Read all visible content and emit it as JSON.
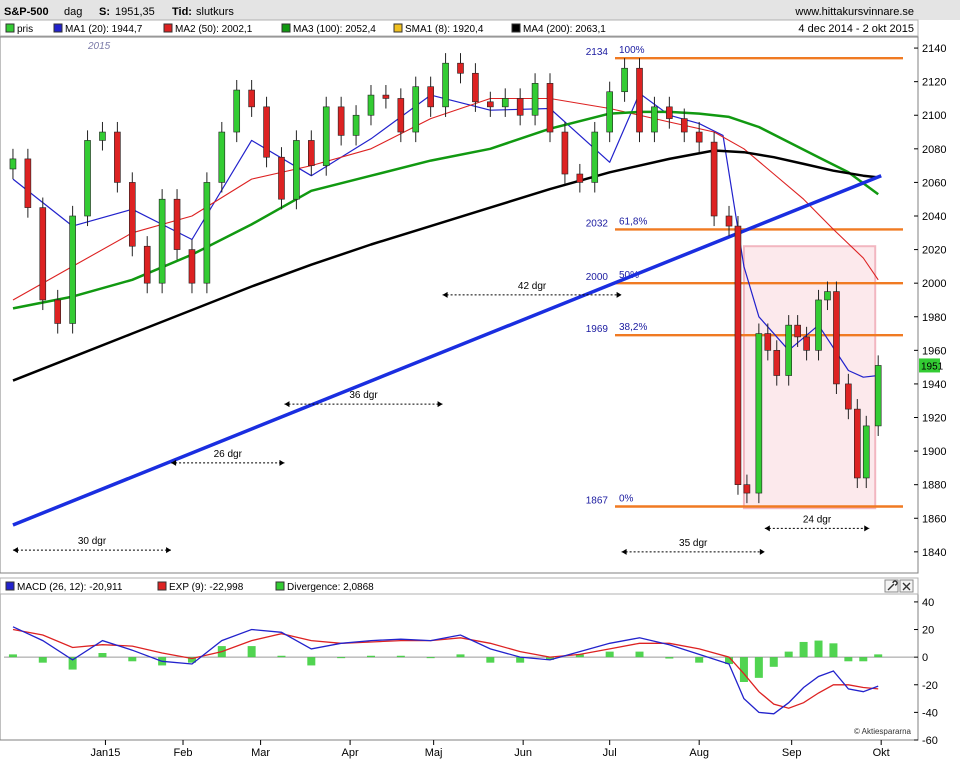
{
  "header": {
    "symbol": "S&P-500",
    "period": "dag",
    "last_label": "S:",
    "last_value": "1951,35",
    "type_label": "Tid:",
    "type_value": "slutkurs",
    "site": "www.hittakursvinnare.se",
    "date_range": "4 dec 2014 - 2 okt 2015",
    "year_watermark": "2015"
  },
  "legend": [
    {
      "label": "pris",
      "color": "#33cc33"
    },
    {
      "label": "MA1 (20): 1944,7",
      "color": "#2222cc"
    },
    {
      "label": "MA2 (50): 2002,1",
      "color": "#dd2222"
    },
    {
      "label": "MA3 (100): 2052,4",
      "color": "#119911"
    },
    {
      "label": "SMA1 (8): 1920,4",
      "color": "#f0c020"
    },
    {
      "label": "MA4 (200): 2063,1",
      "color": "#000000"
    }
  ],
  "macd_legend": [
    {
      "label": "MACD (26, 12): -20,911",
      "color": "#2222cc"
    },
    {
      "label": "EXP (9): -22,998",
      "color": "#dd2222"
    },
    {
      "label": "Divergence: 2,0868",
      "color": "#33cc33"
    }
  ],
  "price_tag": "1951",
  "credit": "© Aktiespararna",
  "fib_levels": [
    {
      "price": 2134,
      "label": "2134",
      "pct": "100%"
    },
    {
      "price": 2032,
      "label": "2032",
      "pct": "61,8%"
    },
    {
      "price": 2000,
      "label": "2000",
      "pct": "50%"
    },
    {
      "price": 1969,
      "label": "1969",
      "pct": "38,2%"
    },
    {
      "price": 1867,
      "label": "1867",
      "pct": "0%"
    }
  ],
  "distance_labels": [
    {
      "text": "30 dgr",
      "x0": 0.0,
      "x1": 5.3,
      "price": 1841
    },
    {
      "text": "26 dgr",
      "x0": 5.3,
      "x1": 9.1,
      "price": 1893
    },
    {
      "text": "36 dgr",
      "x0": 9.1,
      "x1": 14.4,
      "price": 1928
    },
    {
      "text": "42 dgr",
      "x0": 14.4,
      "x1": 20.4,
      "price": 1993
    },
    {
      "text": "35 dgr",
      "x0": 20.4,
      "x1": 25.2,
      "price": 1840
    },
    {
      "text": "24 dgr",
      "x0": 25.2,
      "x1": 28.7,
      "price": 1854
    }
  ],
  "chart_data": {
    "type": "line",
    "title": "S&P-500",
    "x_unit": "weeks since 4 dec 2014",
    "xlim": [
      -0.3,
      30.2
    ],
    "ylim": [
      1828,
      2146
    ],
    "y_ticks": [
      1840,
      1860,
      1880,
      1900,
      1920,
      1940,
      1960,
      1980,
      2000,
      2020,
      2040,
      2060,
      2080,
      2100,
      2120,
      2140
    ],
    "months": [
      {
        "label": "Jan15",
        "x": 3.1
      },
      {
        "label": "Feb",
        "x": 5.7
      },
      {
        "label": "Mar",
        "x": 8.3
      },
      {
        "label": "Apr",
        "x": 11.3
      },
      {
        "label": "Maj",
        "x": 14.1
      },
      {
        "label": "Jun",
        "x": 17.1
      },
      {
        "label": "Jul",
        "x": 20.0
      },
      {
        "label": "Aug",
        "x": 23.0
      },
      {
        "label": "Sep",
        "x": 26.1
      },
      {
        "label": "Okt",
        "x": 29.1
      }
    ],
    "price": {
      "name": "pris",
      "x": [
        0,
        0.5,
        1,
        1.5,
        2,
        2.5,
        3,
        3.5,
        4,
        4.5,
        5,
        5.5,
        6,
        6.5,
        7,
        7.5,
        8,
        8.5,
        9,
        9.5,
        10,
        10.5,
        11,
        11.5,
        12,
        12.5,
        13,
        13.5,
        14,
        14.5,
        15,
        15.5,
        16,
        16.5,
        17,
        17.5,
        18,
        18.5,
        19,
        19.5,
        20,
        20.5,
        21,
        21.5,
        22,
        22.5,
        23,
        23.5,
        24,
        24.3,
        24.6,
        25,
        25.3,
        25.6,
        26,
        26.3,
        26.6,
        27,
        27.3,
        27.6,
        28,
        28.3,
        28.6,
        29
      ],
      "values": [
        2074,
        2045,
        1990,
        1976,
        2040,
        2085,
        2090,
        2060,
        2022,
        2000,
        2050,
        2020,
        2000,
        2060,
        2090,
        2115,
        2105,
        2075,
        2050,
        2085,
        2070,
        2105,
        2088,
        2100,
        2112,
        2110,
        2090,
        2117,
        2105,
        2131,
        2125,
        2108,
        2105,
        2110,
        2100,
        2119,
        2090,
        2065,
        2060,
        2090,
        2114,
        2128,
        2090,
        2105,
        2098,
        2090,
        2084,
        2040,
        2034,
        1880,
        1875,
        1970,
        1960,
        1945,
        1975,
        1968,
        1960,
        1990,
        1995,
        1940,
        1925,
        1884,
        1915,
        1951
      ]
    },
    "series": [
      {
        "name": "MA1 (20)",
        "color": "#2222cc",
        "width": 1.2,
        "x": [
          0,
          2,
          4,
          6,
          8,
          10,
          12,
          14,
          16,
          18,
          20,
          21,
          22,
          23,
          23.8,
          24.5,
          25,
          26,
          27,
          28,
          28.5,
          29
        ],
        "values": [
          2062,
          2034,
          2044,
          2026,
          2085,
          2064,
          2086,
          2112,
          2103,
          2104,
          2072,
          2113,
          2100,
          2095,
          2088,
          2010,
          1980,
          1960,
          1975,
          1948,
          1944,
          1945
        ]
      },
      {
        "name": "MA2 (50)",
        "color": "#dd2222",
        "width": 1.1,
        "x": [
          0,
          2,
          4,
          6,
          8,
          10,
          12,
          14,
          16,
          18,
          20,
          22,
          23.5,
          24.5,
          25.5,
          26.5,
          27.5,
          28.5,
          29
        ],
        "values": [
          1990,
          2010,
          2030,
          2040,
          2062,
          2070,
          2080,
          2098,
          2110,
          2110,
          2104,
          2096,
          2090,
          2080,
          2065,
          2050,
          2032,
          2015,
          2002
        ]
      },
      {
        "name": "MA3 (100)",
        "color": "#119911",
        "width": 2.5,
        "x": [
          0,
          2,
          4,
          6,
          8,
          10,
          12,
          14,
          16,
          18,
          20,
          21,
          22,
          23,
          24,
          25,
          26,
          27,
          28,
          29
        ],
        "values": [
          1985,
          1992,
          2002,
          2017,
          2035,
          2055,
          2064,
          2073,
          2080,
          2092,
          2101,
          2102,
          2102,
          2101,
          2099,
          2093,
          2084,
          2075,
          2066,
          2053
        ]
      },
      {
        "name": "MA4 (200)",
        "color": "#000000",
        "width": 2.5,
        "x": [
          0,
          2,
          4,
          6,
          8,
          10,
          12,
          14,
          16,
          18,
          20,
          22,
          23.5,
          24.5,
          25.5,
          26.5,
          27.5,
          28.5,
          29
        ],
        "values": [
          1942,
          1956,
          1970,
          1984,
          1998,
          2011,
          2023,
          2034,
          2045,
          2056,
          2066,
          2074,
          2079,
          2078,
          2075,
          2071,
          2067,
          2064,
          2063
        ]
      }
    ],
    "trendline": {
      "color": "#1a2ee0",
      "x": [
        0,
        29.1
      ],
      "values": [
        1856,
        2064
      ]
    },
    "zoom_box": {
      "x0": 24.5,
      "x1": 28.9,
      "y_top": 2022,
      "y_bottom": 1866
    },
    "macd": {
      "ylim": [
        -60,
        45
      ],
      "y_ticks": [
        40,
        20,
        0,
        -20,
        -40,
        -60
      ],
      "x": [
        0,
        1,
        2,
        3,
        4,
        5,
        6,
        7,
        8,
        9,
        10,
        11,
        12,
        13,
        14,
        15,
        16,
        17,
        18,
        19,
        20,
        21,
        22,
        23,
        24,
        24.5,
        25,
        25.5,
        26,
        26.5,
        27,
        27.5,
        28,
        28.5,
        29
      ],
      "macd": [
        22,
        12,
        -2,
        12,
        5,
        -3,
        -5,
        12,
        20,
        18,
        6,
        10,
        12,
        13,
        12,
        16,
        6,
        0,
        -2,
        4,
        10,
        14,
        9,
        2,
        -5,
        -30,
        -40,
        -41,
        -33,
        -22,
        -14,
        -10,
        -23,
        -25,
        -21
      ],
      "signal": [
        20,
        16,
        7,
        9,
        8,
        3,
        -1,
        4,
        12,
        17,
        12,
        10,
        11,
        12,
        12,
        14,
        10,
        4,
        0,
        2,
        6,
        10,
        10,
        6,
        0,
        -12,
        -25,
        -34,
        -37,
        -33,
        -26,
        -20,
        -20,
        -22,
        -23
      ],
      "divergence": [
        2,
        -4,
        -9,
        3,
        -3,
        -6,
        -4,
        8,
        8,
        1,
        -6,
        0,
        1,
        1,
        0,
        2,
        -4,
        -4,
        -2,
        2,
        4,
        4,
        -1,
        -4,
        -5,
        -18,
        -15,
        -7,
        4,
        11,
        12,
        10,
        -3,
        -3,
        2
      ]
    }
  }
}
